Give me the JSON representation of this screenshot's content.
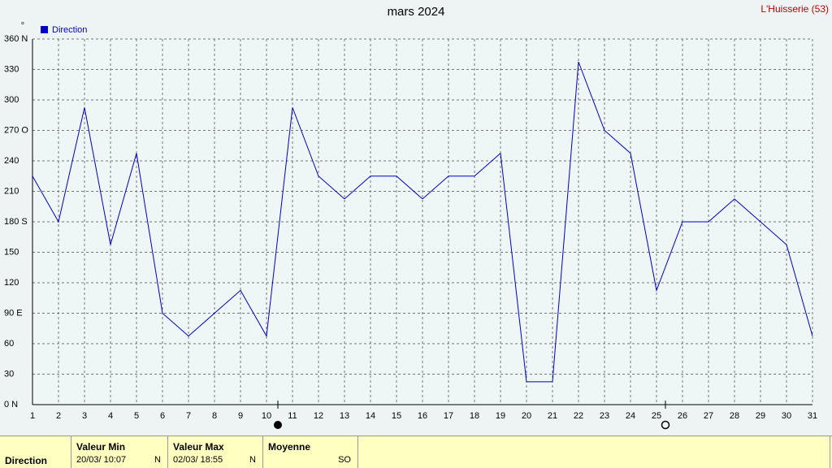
{
  "chart_data": {
    "type": "line",
    "title": "mars 2024",
    "station": "L'Huisserie (53)",
    "y_unit": "°",
    "x": [
      1,
      2,
      3,
      4,
      5,
      6,
      7,
      8,
      9,
      10,
      11,
      12,
      13,
      14,
      15,
      16,
      17,
      18,
      19,
      20,
      21,
      22,
      23,
      24,
      25,
      26,
      27,
      28,
      29,
      30,
      31
    ],
    "xlim": [
      1,
      31
    ],
    "xticks": [
      1,
      2,
      3,
      4,
      5,
      6,
      7,
      8,
      9,
      10,
      11,
      12,
      13,
      14,
      15,
      16,
      17,
      18,
      19,
      20,
      21,
      22,
      23,
      24,
      25,
      26,
      27,
      28,
      29,
      30,
      31
    ],
    "series": [
      {
        "name": "Direction",
        "color": "#0000c8",
        "values": [
          225,
          180,
          292.5,
          157.5,
          247.5,
          90,
          67.5,
          90,
          112.5,
          67.5,
          292.5,
          225,
          202.5,
          225,
          225,
          202.5,
          225,
          225,
          247.5,
          22.5,
          22.5,
          337.5,
          270,
          247.5,
          112.5,
          180,
          180,
          202.5,
          180,
          157.5,
          67.5
        ]
      }
    ],
    "ylim": [
      0,
      360
    ],
    "yticks": [
      {
        "value": 0,
        "label": "0   N"
      },
      30,
      60,
      {
        "value": 90,
        "label": "90   E"
      },
      120,
      150,
      {
        "value": 180,
        "label": "180 S"
      },
      210,
      240,
      {
        "value": 270,
        "label": "270 O"
      },
      300,
      330,
      {
        "value": 360,
        "label": "360 N"
      }
    ],
    "grid": true
  },
  "summary": {
    "row_label": "Direction",
    "min": {
      "header": "Valeur Min",
      "date": "20/03/  10:07",
      "dir": "N"
    },
    "max": {
      "header": "Valeur Max",
      "date": "02/03/  18:55",
      "dir": "N"
    },
    "mean": {
      "header": "Moyenne",
      "dir": "SO"
    }
  }
}
